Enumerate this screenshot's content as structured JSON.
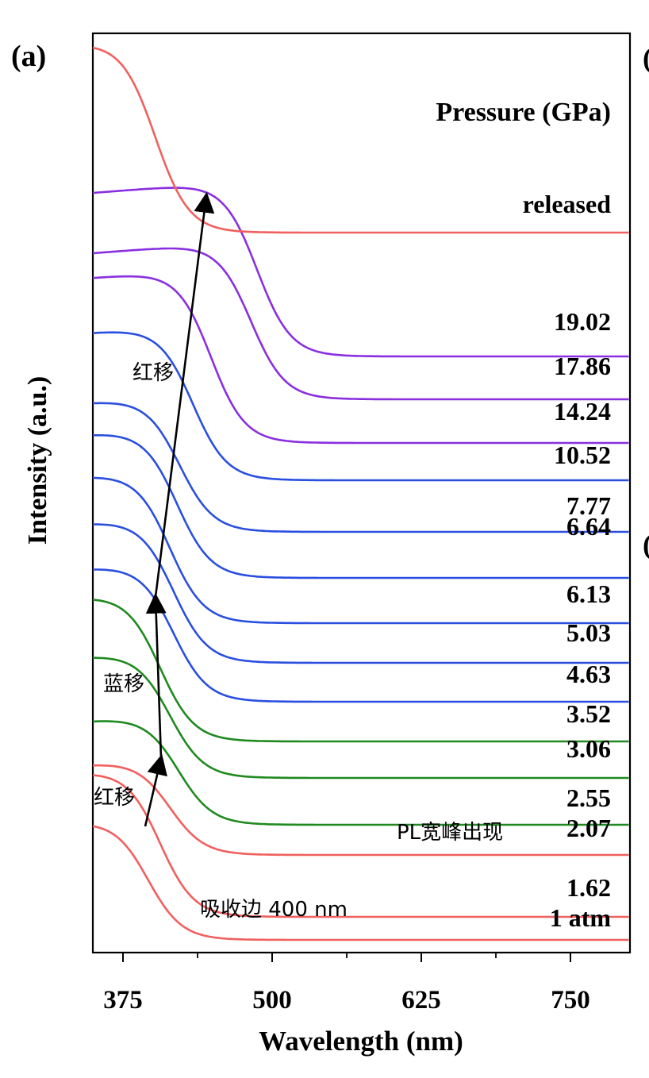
{
  "chart_data": {
    "type": "line",
    "panel_label": "(a)",
    "xlabel": "Wavelength (nm)",
    "ylabel": "Intensity (a.u.)",
    "xlim": [
      362,
      805
    ],
    "xticks": [
      "375",
      "500",
      "625",
      "750"
    ],
    "legend_title": "Pressure (GPa)",
    "grid": false,
    "colors": {
      "red": "#f0605e",
      "green": "#1f8a1f",
      "blue": "#2a4fe0",
      "purple": "#8a2fe0",
      "arrow": "#000000"
    },
    "series": [
      {
        "name": "1 atm",
        "color": "red",
        "type": "edge",
        "flat": 1035,
        "edge": 407,
        "end": 1184,
        "drop": 142
      },
      {
        "name": "1.62",
        "color": "red",
        "type": "edge",
        "flat": 973,
        "edge": 417,
        "end": 1155,
        "drop": 145
      },
      {
        "name": "2.07",
        "color": "red",
        "type": "edge",
        "flat": 963,
        "edge": 425,
        "end": 1077,
        "drop": 98
      },
      {
        "name": "2.55",
        "color": "green",
        "type": "edge",
        "flat": 908,
        "edge": 432,
        "end": 1039,
        "drop": 104
      },
      {
        "name": "3.06",
        "color": "green",
        "type": "edge",
        "flat": 827,
        "edge": 425,
        "end": 980,
        "drop": 125
      },
      {
        "name": "3.52",
        "color": "green",
        "type": "edge",
        "flat": 752,
        "edge": 417,
        "end": 934,
        "drop": 158
      },
      {
        "name": "4.63",
        "color": "blue",
        "type": "edge",
        "flat": 716,
        "edge": 428,
        "end": 884,
        "drop": 138
      },
      {
        "name": "5.03",
        "color": "blue",
        "type": "edge",
        "flat": 659,
        "edge": 428,
        "end": 835,
        "drop": 146
      },
      {
        "name": "6.13",
        "color": "blue",
        "type": "edge",
        "flat": 600,
        "edge": 425,
        "end": 785,
        "drop": 155
      },
      {
        "name": "6.64",
        "color": "blue",
        "type": "edge",
        "flat": 547,
        "edge": 431,
        "end": 728,
        "drop": 150
      },
      {
        "name": "7.77",
        "color": "blue",
        "type": "edge",
        "flat": 507,
        "edge": 433,
        "end": 670,
        "drop": 135
      },
      {
        "name": "10.52",
        "color": "blue",
        "type": "edge",
        "flat": 419,
        "edge": 444,
        "end": 605,
        "drop": 155
      },
      {
        "name": "14.24",
        "color": "purple",
        "type": "edge",
        "flat": 350,
        "edge": 459,
        "end": 558,
        "drop": 158
      },
      {
        "name": "17.86",
        "color": "purple",
        "type": "edge",
        "flat": 319,
        "edge": 492,
        "end": 503,
        "drop": 140
      },
      {
        "name": "19.02",
        "color": "purple",
        "type": "edge",
        "flat": 243,
        "edge": 497,
        "end": 449,
        "drop": 162
      },
      {
        "name": "released",
        "color": "red",
        "type": "edge",
        "flat": 54,
        "edge": 413,
        "end": 293,
        "drop": 160
      }
    ],
    "annotations": [
      {
        "text": "红移",
        "x": 403,
        "y": 640
      },
      {
        "text": "蓝移",
        "x": 401,
        "y": 1035
      },
      {
        "text": "红移",
        "x": 389,
        "y": 1166
      },
      {
        "text": "PL宽峰出现",
        "x": 658,
        "y": 1208
      },
      {
        "text": "吸收边 400 nm",
        "x": 537,
        "y": 1321
      }
    ]
  }
}
